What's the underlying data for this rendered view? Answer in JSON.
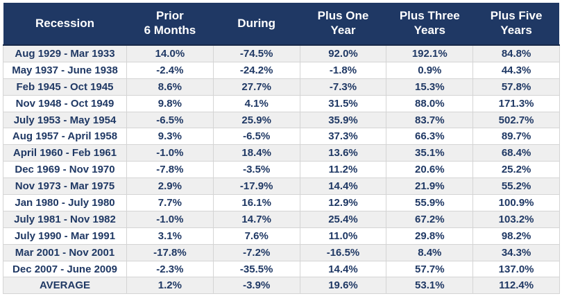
{
  "colors": {
    "header_bg": "#1F3864",
    "header_text": "#FFFFFF",
    "cell_text": "#1F3864",
    "stripe_bg": "#EFEFEF",
    "grid_border": "#D4D4D4"
  },
  "chart_data": {
    "type": "table",
    "columns": [
      "Recession",
      "Prior\n6 Months",
      "During",
      "Plus One\nYear",
      "Plus Three\nYears",
      "Plus Five\nYears"
    ],
    "rows": [
      [
        "Aug 1929 - Mar 1933",
        "14.0%",
        "-74.5%",
        "92.0%",
        "192.1%",
        "84.8%"
      ],
      [
        "May 1937 - June 1938",
        "-2.4%",
        "-24.2%",
        "-1.8%",
        "0.9%",
        "44.3%"
      ],
      [
        "Feb 1945 - Oct 1945",
        "8.6%",
        "27.7%",
        "-7.3%",
        "15.3%",
        "57.8%"
      ],
      [
        "Nov 1948 - Oct 1949",
        "9.8%",
        "4.1%",
        "31.5%",
        "88.0%",
        "171.3%"
      ],
      [
        "July 1953 - May 1954",
        "-6.5%",
        "25.9%",
        "35.9%",
        "83.7%",
        "502.7%"
      ],
      [
        "Aug 1957 - April 1958",
        "9.3%",
        "-6.5%",
        "37.3%",
        "66.3%",
        "89.7%"
      ],
      [
        "April 1960 - Feb 1961",
        "-1.0%",
        "18.4%",
        "13.6%",
        "35.1%",
        "68.4%"
      ],
      [
        "Dec 1969 - Nov 1970",
        "-7.8%",
        "-3.5%",
        "11.2%",
        "20.6%",
        "25.2%"
      ],
      [
        "Nov 1973 - Mar 1975",
        "2.9%",
        "-17.9%",
        "14.4%",
        "21.9%",
        "55.2%"
      ],
      [
        "Jan 1980 - July 1980",
        "7.7%",
        "16.1%",
        "12.9%",
        "55.9%",
        "100.9%"
      ],
      [
        "July 1981 - Nov 1982",
        "-1.0%",
        "14.7%",
        "25.4%",
        "67.2%",
        "103.2%"
      ],
      [
        "July 1990 - Mar 1991",
        "3.1%",
        "7.6%",
        "11.0%",
        "29.8%",
        "98.2%"
      ],
      [
        "Mar 2001 - Nov 2001",
        "-17.8%",
        "-7.2%",
        "-16.5%",
        "8.4%",
        "34.3%"
      ],
      [
        "Dec 2007 - June 2009",
        "-2.3%",
        "-35.5%",
        "14.4%",
        "57.7%",
        "137.0%"
      ],
      [
        "AVERAGE",
        "1.2%",
        "-3.9%",
        "19.6%",
        "53.1%",
        "112.4%"
      ]
    ]
  }
}
